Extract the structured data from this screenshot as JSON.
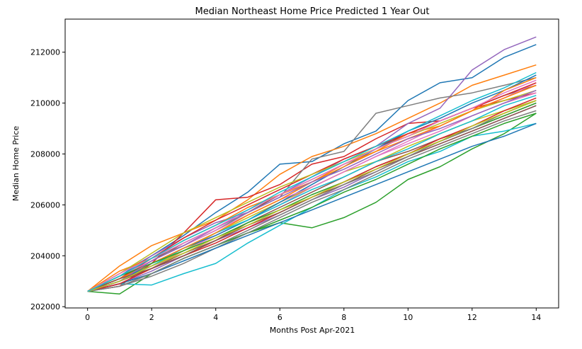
{
  "chart_data": {
    "type": "line",
    "title": "Median Northeast Home Price Predicted 1 Year Out",
    "xlabel": "Months Post Apr-2021",
    "ylabel": "Median Home Price",
    "xlim": [
      -0.7,
      14.7
    ],
    "ylim": [
      201950,
      213300
    ],
    "x_ticks": [
      "0",
      "2",
      "4",
      "6",
      "8",
      "10",
      "12",
      "14"
    ],
    "y_ticks": [
      "202000",
      "204000",
      "206000",
      "208000",
      "210000",
      "212000"
    ],
    "grid": false,
    "legend": "none",
    "colors": [
      "#1f77b4",
      "#ff7f0e",
      "#2ca02c",
      "#d62728",
      "#9467bd",
      "#8c564b",
      "#e377c2",
      "#7f7f7f",
      "#bcbd22",
      "#17becf"
    ],
    "x": [
      0,
      1,
      2,
      3,
      4,
      5,
      6,
      7,
      8,
      9,
      10,
      11,
      12,
      13,
      14
    ],
    "series": [
      {
        "values": [
          202600,
          203200,
          204000,
          204800,
          205700,
          206500,
          207600,
          207700,
          208400,
          208900,
          210100,
          210800,
          211000,
          211800,
          212300
        ]
      },
      {
        "values": [
          202600,
          203600,
          204400,
          204900,
          205400,
          206200,
          207200,
          207900,
          208300,
          208800,
          209400,
          210000,
          210700,
          211100,
          211500
        ]
      },
      {
        "values": [
          202600,
          202500,
          203300,
          203900,
          204400,
          204900,
          205300,
          205100,
          205500,
          206100,
          207000,
          207500,
          208200,
          208800,
          209600
        ]
      },
      {
        "values": [
          202600,
          202800,
          203700,
          204900,
          206200,
          206300,
          206800,
          207600,
          207900,
          208600,
          209200,
          209300,
          209800,
          210100,
          210400
        ]
      },
      {
        "values": [
          202600,
          203300,
          204000,
          204700,
          205300,
          205700,
          206400,
          207100,
          207800,
          208300,
          209200,
          209800,
          211300,
          212100,
          212600
        ]
      },
      {
        "values": [
          202600,
          203100,
          203800,
          204500,
          205100,
          205700,
          206400,
          207000,
          207600,
          208200,
          208800,
          209300,
          209800,
          210300,
          210700
        ]
      },
      {
        "values": [
          202600,
          203000,
          203500,
          204200,
          204800,
          205400,
          206000,
          206700,
          207300,
          207900,
          208500,
          209100,
          209700,
          210200,
          210800
        ]
      },
      {
        "values": [
          202600,
          203200,
          203900,
          204400,
          205000,
          205700,
          206300,
          207800,
          208100,
          209600,
          209900,
          210200,
          210400,
          210700,
          211000
        ]
      },
      {
        "values": [
          202600,
          203100,
          203600,
          204200,
          204900,
          205500,
          206100,
          206700,
          207300,
          207700,
          208300,
          208800,
          209300,
          209700,
          210100
        ]
      },
      {
        "values": [
          202600,
          202900,
          202850,
          203300,
          203700,
          204500,
          205200,
          205900,
          206600,
          207100,
          207700,
          208100,
          208700,
          208900,
          209200
        ]
      },
      {
        "values": [
          202600,
          203000,
          203700,
          204300,
          204800,
          205400,
          206100,
          206800,
          207500,
          208200,
          208900,
          209400,
          210000,
          210500,
          211100
        ]
      },
      {
        "values": [
          202600,
          203400,
          203900,
          204600,
          205200,
          205900,
          206400,
          206900,
          207600,
          208100,
          208800,
          209100,
          209700,
          210500,
          211000
        ]
      },
      {
        "values": [
          202600,
          202900,
          203300,
          203900,
          204400,
          204900,
          205400,
          205900,
          206500,
          207000,
          207600,
          208200,
          208700,
          209200,
          209600
        ]
      },
      {
        "values": [
          202600,
          203100,
          203900,
          204700,
          205400,
          206000,
          206600,
          207200,
          207800,
          208300,
          208800,
          209300,
          209800,
          210300,
          210800
        ]
      },
      {
        "values": [
          202600,
          202900,
          203400,
          204000,
          204600,
          205100,
          205600,
          206200,
          206700,
          207300,
          207900,
          208400,
          208900,
          209400,
          209900
        ]
      },
      {
        "values": [
          202600,
          203000,
          203500,
          204100,
          204600,
          205300,
          205900,
          206500,
          207100,
          207700,
          208100,
          208600,
          209000,
          209500,
          210000
        ]
      },
      {
        "values": [
          202600,
          203200,
          203800,
          204400,
          205000,
          205600,
          206200,
          206700,
          207300,
          207900,
          208400,
          208900,
          209500,
          210000,
          210400
        ]
      },
      {
        "values": [
          202600,
          202800,
          203200,
          203700,
          204300,
          204900,
          205500,
          206100,
          206600,
          207200,
          207800,
          208300,
          208800,
          209300,
          209700
        ]
      },
      {
        "values": [
          202600,
          203300,
          204100,
          204900,
          205500,
          206100,
          206700,
          207200,
          207700,
          208200,
          208700,
          209200,
          209700,
          210100,
          210500
        ]
      },
      {
        "values": [
          202600,
          203000,
          203600,
          204300,
          204900,
          205400,
          206000,
          206600,
          207100,
          207700,
          208200,
          208800,
          209300,
          209900,
          210300
        ]
      },
      {
        "values": [
          202600,
          202900,
          203300,
          203800,
          204300,
          204800,
          205300,
          205800,
          206300,
          206800,
          207300,
          207800,
          208300,
          208700,
          209200
        ]
      },
      {
        "values": [
          202600,
          203100,
          203700,
          204300,
          204900,
          205600,
          206200,
          206900,
          207500,
          208100,
          208600,
          209100,
          209700,
          210200,
          210700
        ]
      },
      {
        "values": [
          202600,
          203200,
          203700,
          204200,
          204700,
          205300,
          205800,
          206400,
          206900,
          207500,
          208000,
          208500,
          209000,
          209500,
          210000
        ]
      },
      {
        "values": [
          202600,
          202900,
          203500,
          204000,
          204500,
          205100,
          205700,
          206300,
          206900,
          207500,
          208000,
          208600,
          209100,
          209700,
          210200
        ]
      },
      {
        "values": [
          202600,
          203000,
          203800,
          204400,
          205100,
          205700,
          206300,
          206900,
          207400,
          208000,
          208600,
          209000,
          209500,
          210000,
          210500
        ]
      },
      {
        "values": [
          202600,
          203100,
          203500,
          204000,
          204600,
          205200,
          205700,
          206300,
          206800,
          207400,
          207900,
          208400,
          208900,
          209400,
          209900
        ]
      },
      {
        "values": [
          202600,
          203300,
          203900,
          204500,
          205100,
          205800,
          206400,
          207000,
          207600,
          208200,
          208700,
          209300,
          209800,
          210400,
          210900
        ]
      },
      {
        "values": [
          202600,
          202800,
          203300,
          203900,
          204400,
          205000,
          205600,
          206200,
          206800,
          207300,
          207900,
          208500,
          209000,
          209600,
          210100
        ]
      },
      {
        "values": [
          202600,
          203000,
          203600,
          204100,
          204700,
          205200,
          205800,
          206300,
          206900,
          207400,
          208000,
          208500,
          209100,
          209600,
          210100
        ]
      },
      {
        "values": [
          202600,
          203200,
          203900,
          204600,
          205200,
          205800,
          206500,
          207100,
          207700,
          208300,
          208900,
          209500,
          210100,
          210600,
          211200
        ]
      }
    ]
  }
}
